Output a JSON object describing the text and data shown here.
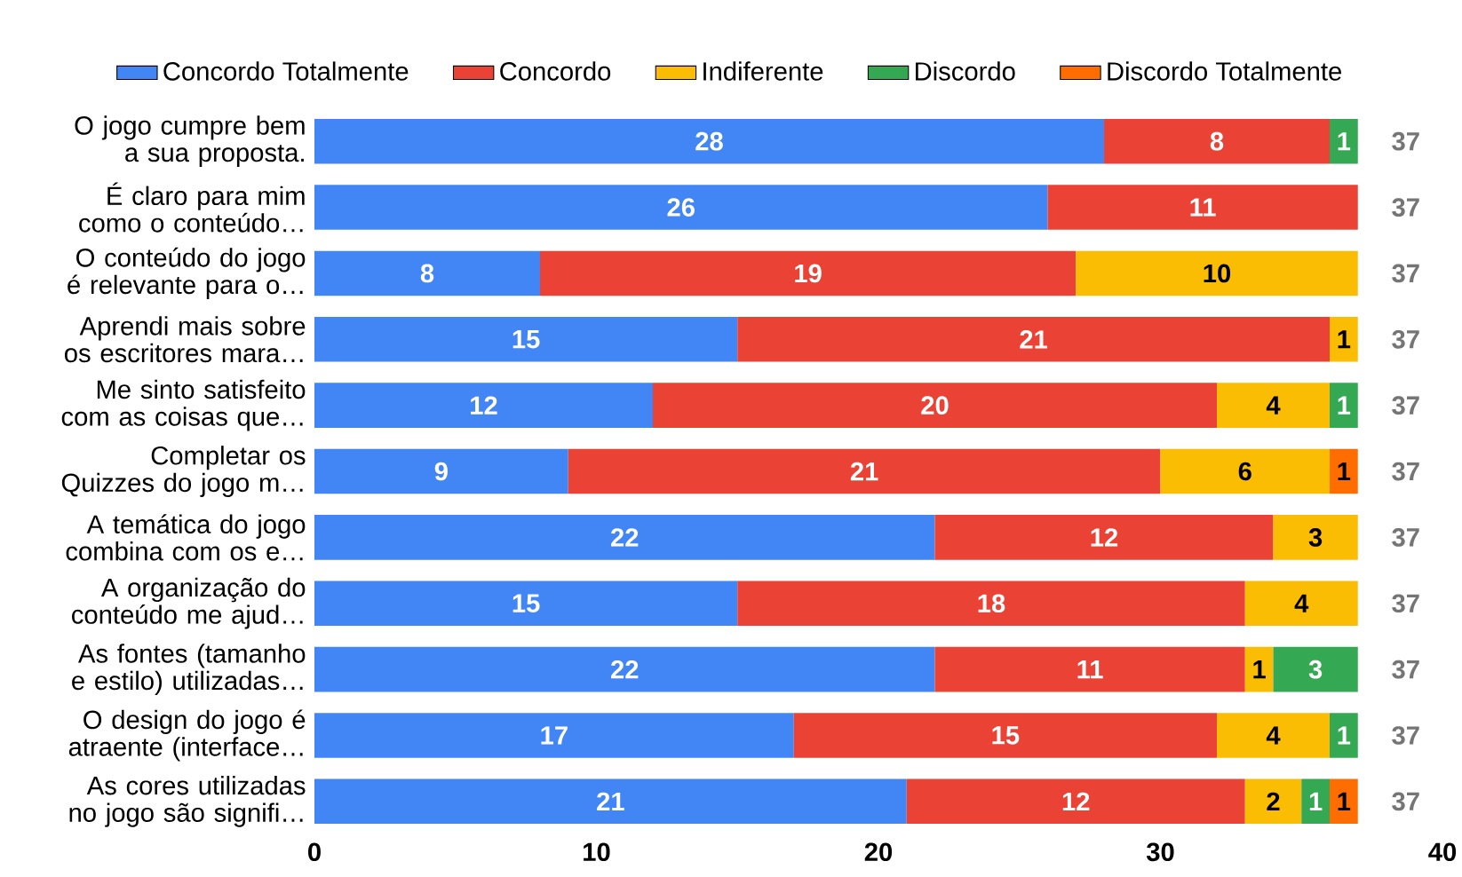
{
  "chart_data": {
    "type": "bar",
    "orientation": "horizontal",
    "stacked": true,
    "data_labels": true,
    "legend": "top",
    "categories": [
      "O jogo cumpre bem a sua proposta.",
      "É claro para mim como o conteúdo…",
      "O conteúdo do jogo é relevante para o…",
      "Aprendi mais sobre os escritores mara…",
      "Me sinto satisfeito com as coisas que…",
      "Completar os Quizzes do jogo m…",
      "A temática do jogo combina com os e…",
      "A organização do conteúdo me ajud…",
      "As fontes (tamanho e estilo) utilizadas…",
      "O design do jogo é atraente (interface…",
      "As cores utilizadas no jogo são signifi…"
    ],
    "series": [
      {
        "name": "Concordo Totalmente",
        "color": "#4285f4",
        "values": [
          28,
          26,
          8,
          15,
          12,
          9,
          22,
          15,
          22,
          17,
          21
        ]
      },
      {
        "name": "Concordo",
        "color": "#ea4335",
        "values": [
          8,
          11,
          19,
          21,
          20,
          21,
          12,
          18,
          11,
          15,
          12
        ]
      },
      {
        "name": "Indiferente",
        "color": "#fbbc04",
        "values": [
          null,
          null,
          10,
          1,
          4,
          6,
          3,
          4,
          1,
          4,
          2
        ]
      },
      {
        "name": "Discordo",
        "color": "#34a853",
        "values": [
          1,
          null,
          null,
          null,
          1,
          null,
          null,
          null,
          3,
          1,
          1
        ]
      },
      {
        "name": "Discordo Totalmente",
        "color": "#ff6d01",
        "values": [
          null,
          null,
          null,
          null,
          null,
          1,
          null,
          null,
          null,
          null,
          1
        ]
      }
    ],
    "totals": [
      "37",
      "37",
      "37",
      "37",
      "37",
      "37",
      "37",
      "37",
      "37",
      "37",
      "37"
    ],
    "xlim": [
      0,
      40
    ],
    "xticks": [
      0,
      10,
      20,
      30,
      40
    ]
  }
}
